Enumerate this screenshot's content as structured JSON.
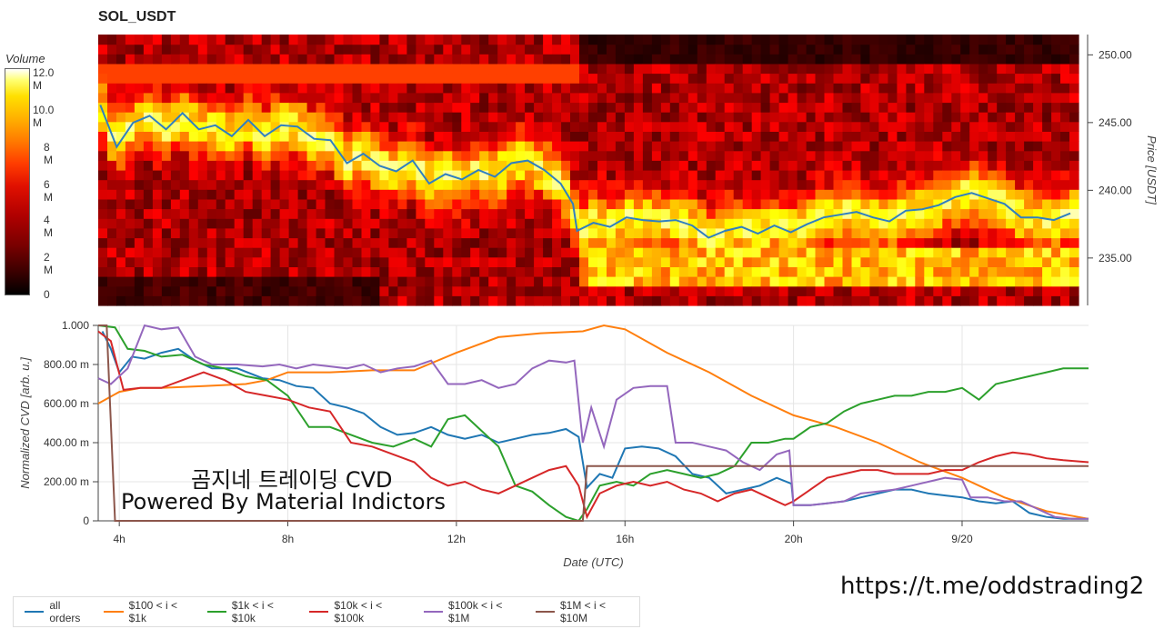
{
  "title": "SOL_USDT",
  "colorbar": {
    "title": "Volume",
    "ticks": [
      "12.0 M",
      "10.0 M",
      "8 M",
      "6 M",
      "4 M",
      "2 M",
      "0"
    ]
  },
  "watermark": {
    "line1": "곰지네 트레이딩 CVD",
    "line2": "Powered By Material Indictors"
  },
  "link": "https://t.me/oddstrading2",
  "colors": {
    "all orders": "#1f77b4",
    "$100 < i < $1k": "#ff7f0e",
    "$1k < i < $10k": "#2ca02c",
    "$10k < i < $100k": "#d62728",
    "$100k < i < $1M": "#9467bd",
    "$1M < i < $10M": "#8c564b",
    "price": "#2f7fc1"
  },
  "chart_data": [
    {
      "type": "heatmap",
      "title": "SOL_USDT",
      "ylabel": "Price [USDT]",
      "ylim": [
        231.5,
        251.5
      ],
      "yticks": [
        "235.00",
        "240.00",
        "245.00",
        "250.00"
      ],
      "color_scale": "hot",
      "value_label": "Volume",
      "value_range": [
        0,
        12000000
      ],
      "price_series": {
        "name": "price",
        "x": [
          3.4,
          3.8,
          4.2,
          4.6,
          5.0,
          5.4,
          5.8,
          6.2,
          6.6,
          7.0,
          7.4,
          7.8,
          8.2,
          8.6,
          9.0,
          9.4,
          9.8,
          10.2,
          10.6,
          11.0,
          11.4,
          11.8,
          12.2,
          12.6,
          13.0,
          13.4,
          13.8,
          14.2,
          14.6,
          14.9,
          15.0,
          15.4,
          15.8,
          16.2,
          16.6,
          17.0,
          17.4,
          17.8,
          18.2,
          18.6,
          19.0,
          19.4,
          19.8,
          20.2,
          20.6,
          21.0,
          21.4,
          21.8,
          22.2,
          22.6,
          23.0,
          23.4,
          23.8,
          24.2,
          24.6,
          25.0,
          25.4,
          25.8,
          26.2,
          26.6,
          27.0
        ],
        "y": [
          246.3,
          243.2,
          245.0,
          245.5,
          244.5,
          245.7,
          244.5,
          244.8,
          244.0,
          245.2,
          244.0,
          244.8,
          244.7,
          243.8,
          243.7,
          242.0,
          242.7,
          241.8,
          241.4,
          242.2,
          240.5,
          241.2,
          240.8,
          241.5,
          241.0,
          242.0,
          242.2,
          241.5,
          240.5,
          239.0,
          237.0,
          237.6,
          237.3,
          238.0,
          237.8,
          237.7,
          237.8,
          237.4,
          236.5,
          237.0,
          237.3,
          236.8,
          237.4,
          236.9,
          237.5,
          238.0,
          238.2,
          238.4,
          238.0,
          237.7,
          238.5,
          238.6,
          238.9,
          239.5,
          239.8,
          239.4,
          239.0,
          238.0,
          238.0,
          237.8,
          238.3
        ]
      }
    },
    {
      "type": "line",
      "xlabel": "Date (UTC)",
      "ylabel": "Normalized CVD [arb. u.]",
      "ylim": [
        0,
        1
      ],
      "xlim": [
        3.5,
        27.0
      ],
      "xticks": [
        {
          "value": 4,
          "label": "4h"
        },
        {
          "value": 8,
          "label": "8h"
        },
        {
          "value": 12,
          "label": "12h"
        },
        {
          "value": 16,
          "label": "16h"
        },
        {
          "value": 20,
          "label": "20h"
        },
        {
          "value": 24,
          "label": "9/20"
        }
      ],
      "yticks": [
        {
          "value": 0,
          "label": "0"
        },
        {
          "value": 0.2,
          "label": "200.00 m"
        },
        {
          "value": 0.4,
          "label": "400.00 m"
        },
        {
          "value": 0.6,
          "label": "600.00 m"
        },
        {
          "value": 0.8,
          "label": "800.00 m"
        },
        {
          "value": 1.0,
          "label": "1.000"
        }
      ],
      "grid": true,
      "legend_position": "bottom-left",
      "series": [
        {
          "name": "all orders",
          "x": [
            3.6,
            3.8,
            4.0,
            4.3,
            4.6,
            5.0,
            5.4,
            5.8,
            6.2,
            6.8,
            7.4,
            7.8,
            8.2,
            8.6,
            9.0,
            9.4,
            9.8,
            10.2,
            10.6,
            11.0,
            11.4,
            11.8,
            12.2,
            12.6,
            13.0,
            13.4,
            13.8,
            14.2,
            14.6,
            14.9,
            15.1,
            15.4,
            15.7,
            16.0,
            16.4,
            16.8,
            17.2,
            17.6,
            18.0,
            18.4,
            18.8,
            19.2,
            19.6,
            19.95,
            20.0,
            20.4,
            20.8,
            21.2,
            21.6,
            22.0,
            22.4,
            22.8,
            23.2,
            23.6,
            24.0,
            24.4,
            24.8,
            25.2,
            25.6,
            26.0,
            26.4,
            27.0
          ],
          "y": [
            0.97,
            0.88,
            0.76,
            0.84,
            0.83,
            0.86,
            0.88,
            0.82,
            0.78,
            0.78,
            0.73,
            0.72,
            0.69,
            0.68,
            0.6,
            0.58,
            0.55,
            0.48,
            0.44,
            0.45,
            0.48,
            0.44,
            0.42,
            0.44,
            0.4,
            0.42,
            0.44,
            0.45,
            0.47,
            0.43,
            0.17,
            0.24,
            0.22,
            0.37,
            0.38,
            0.37,
            0.33,
            0.24,
            0.22,
            0.14,
            0.16,
            0.18,
            0.22,
            0.19,
            0.08,
            0.08,
            0.09,
            0.1,
            0.12,
            0.14,
            0.16,
            0.16,
            0.14,
            0.13,
            0.12,
            0.1,
            0.09,
            0.1,
            0.04,
            0.02,
            0.01,
            0.01
          ]
        },
        {
          "name": "$100 < i < $1k",
          "x": [
            3.5,
            4.0,
            4.5,
            5.0,
            6.0,
            7.0,
            7.5,
            8.0,
            9.0,
            10.0,
            11.0,
            12.0,
            13.0,
            14.0,
            15.0,
            15.5,
            16.0,
            17.0,
            18.0,
            19.0,
            20.0,
            21.0,
            22.0,
            23.0,
            24.0,
            25.0,
            26.0,
            27.0
          ],
          "y": [
            0.6,
            0.66,
            0.68,
            0.68,
            0.69,
            0.7,
            0.72,
            0.76,
            0.76,
            0.77,
            0.77,
            0.86,
            0.94,
            0.96,
            0.97,
            1.0,
            0.98,
            0.86,
            0.76,
            0.64,
            0.54,
            0.48,
            0.4,
            0.3,
            0.22,
            0.12,
            0.05,
            0.01
          ]
        },
        {
          "name": "$1k < i < $10k",
          "x": [
            3.5,
            3.9,
            4.2,
            4.6,
            5.0,
            5.5,
            6.0,
            6.5,
            7.0,
            7.5,
            8.0,
            8.5,
            9.0,
            9.5,
            10.0,
            10.5,
            11.0,
            11.4,
            11.8,
            12.2,
            12.6,
            13.0,
            13.4,
            13.8,
            14.2,
            14.6,
            14.9,
            15.1,
            15.4,
            15.8,
            16.2,
            16.6,
            17.0,
            17.4,
            17.8,
            18.2,
            18.6,
            19.0,
            19.4,
            19.8,
            20.0,
            20.4,
            20.8,
            21.2,
            21.6,
            22.0,
            22.4,
            22.8,
            23.2,
            23.6,
            24.0,
            24.4,
            24.8,
            25.2,
            25.6,
            26.0,
            26.4,
            27.0
          ],
          "y": [
            1.0,
            0.99,
            0.88,
            0.87,
            0.84,
            0.85,
            0.8,
            0.78,
            0.74,
            0.72,
            0.64,
            0.48,
            0.48,
            0.44,
            0.4,
            0.38,
            0.42,
            0.38,
            0.52,
            0.54,
            0.46,
            0.38,
            0.18,
            0.15,
            0.08,
            0.02,
            0.0,
            0.06,
            0.18,
            0.2,
            0.18,
            0.24,
            0.26,
            0.24,
            0.22,
            0.24,
            0.28,
            0.4,
            0.4,
            0.42,
            0.42,
            0.48,
            0.5,
            0.56,
            0.6,
            0.62,
            0.64,
            0.64,
            0.66,
            0.66,
            0.68,
            0.62,
            0.7,
            0.72,
            0.74,
            0.76,
            0.78,
            0.78
          ]
        },
        {
          "name": "$10k < i < $100k",
          "x": [
            3.5,
            3.8,
            4.1,
            4.5,
            5.0,
            5.5,
            6.0,
            6.5,
            7.0,
            7.5,
            8.0,
            8.5,
            9.0,
            9.5,
            10.0,
            10.5,
            11.0,
            11.4,
            11.8,
            12.2,
            12.6,
            13.0,
            13.4,
            13.8,
            14.2,
            14.6,
            14.9,
            15.1,
            15.4,
            15.8,
            16.2,
            16.6,
            17.0,
            17.4,
            17.8,
            18.2,
            18.6,
            19.0,
            19.4,
            19.8,
            20.0,
            20.4,
            20.8,
            21.2,
            21.6,
            22.0,
            22.4,
            22.8,
            23.2,
            23.6,
            24.0,
            24.4,
            24.8,
            25.2,
            25.6,
            26.0,
            26.4,
            27.0
          ],
          "y": [
            0.97,
            0.92,
            0.67,
            0.68,
            0.68,
            0.72,
            0.76,
            0.72,
            0.66,
            0.64,
            0.62,
            0.58,
            0.56,
            0.4,
            0.38,
            0.34,
            0.3,
            0.22,
            0.18,
            0.2,
            0.16,
            0.14,
            0.18,
            0.22,
            0.26,
            0.28,
            0.18,
            0.02,
            0.14,
            0.18,
            0.2,
            0.18,
            0.2,
            0.16,
            0.14,
            0.1,
            0.14,
            0.16,
            0.12,
            0.08,
            0.1,
            0.16,
            0.22,
            0.24,
            0.26,
            0.26,
            0.24,
            0.24,
            0.24,
            0.26,
            0.26,
            0.3,
            0.33,
            0.35,
            0.34,
            0.32,
            0.31,
            0.3
          ]
        },
        {
          "name": "$100k < i < $1M",
          "x": [
            3.5,
            3.8,
            4.2,
            4.6,
            5.0,
            5.4,
            5.8,
            6.2,
            6.8,
            7.4,
            7.8,
            8.2,
            8.6,
            9.0,
            9.4,
            9.8,
            10.2,
            10.6,
            11.0,
            11.4,
            11.8,
            12.2,
            12.6,
            13.0,
            13.4,
            13.8,
            14.2,
            14.6,
            14.8,
            15.0,
            15.2,
            15.5,
            15.8,
            16.2,
            16.6,
            17.0,
            17.2,
            17.6,
            18.0,
            18.4,
            18.8,
            19.2,
            19.6,
            19.9,
            20.0,
            20.4,
            20.8,
            21.2,
            21.6,
            22.0,
            22.4,
            22.8,
            23.2,
            23.6,
            24.0,
            24.2,
            24.6,
            25.0,
            25.4,
            25.8,
            26.2,
            26.6,
            27.0
          ],
          "y": [
            0.73,
            0.7,
            0.78,
            1.0,
            0.98,
            0.99,
            0.84,
            0.8,
            0.8,
            0.79,
            0.8,
            0.78,
            0.8,
            0.79,
            0.78,
            0.8,
            0.76,
            0.78,
            0.79,
            0.82,
            0.7,
            0.7,
            0.72,
            0.68,
            0.7,
            0.78,
            0.82,
            0.81,
            0.82,
            0.4,
            0.58,
            0.38,
            0.62,
            0.68,
            0.69,
            0.69,
            0.4,
            0.4,
            0.38,
            0.36,
            0.3,
            0.26,
            0.34,
            0.36,
            0.08,
            0.08,
            0.09,
            0.1,
            0.14,
            0.15,
            0.16,
            0.18,
            0.2,
            0.22,
            0.21,
            0.12,
            0.12,
            0.1,
            0.1,
            0.06,
            0.02,
            0.01,
            0.01
          ]
        },
        {
          "name": "$1M < i < $10M",
          "x": [
            3.5,
            3.7,
            3.9,
            4.0,
            14.9,
            15.0,
            15.1,
            27.0
          ],
          "y": [
            1.0,
            1.0,
            0.0,
            0.0,
            0.0,
            0.0,
            0.28,
            0.28
          ]
        }
      ]
    }
  ]
}
